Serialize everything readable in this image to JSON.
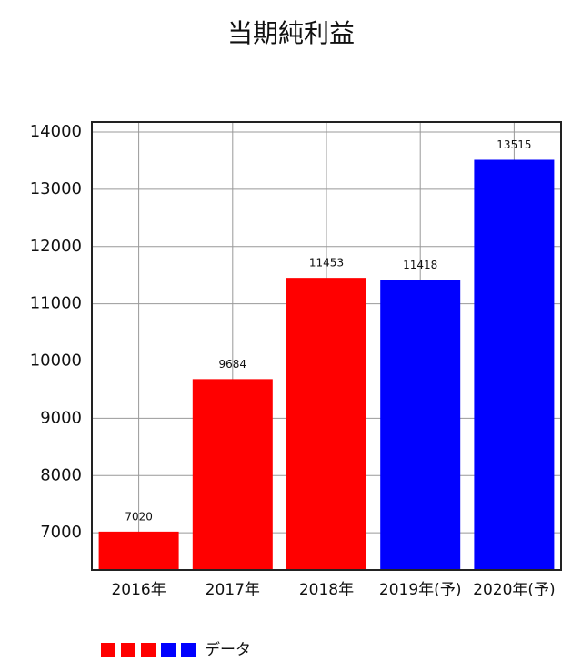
{
  "chart_data": {
    "type": "bar",
    "title": "当期純利益",
    "categories": [
      "2016年",
      "2017年",
      "2018年",
      "2019年(予)",
      "2020年(予)"
    ],
    "values": [
      7020,
      9684,
      11453,
      11418,
      13515
    ],
    "colors": [
      "#ff0000",
      "#ff0000",
      "#ff0000",
      "#0000ff",
      "#0000ff"
    ],
    "legend_label": "データ",
    "ylim": [
      6350,
      14175
    ],
    "yticks": [
      7000,
      8000,
      9000,
      10000,
      11000,
      12000,
      13000,
      14000
    ],
    "grid": true
  }
}
